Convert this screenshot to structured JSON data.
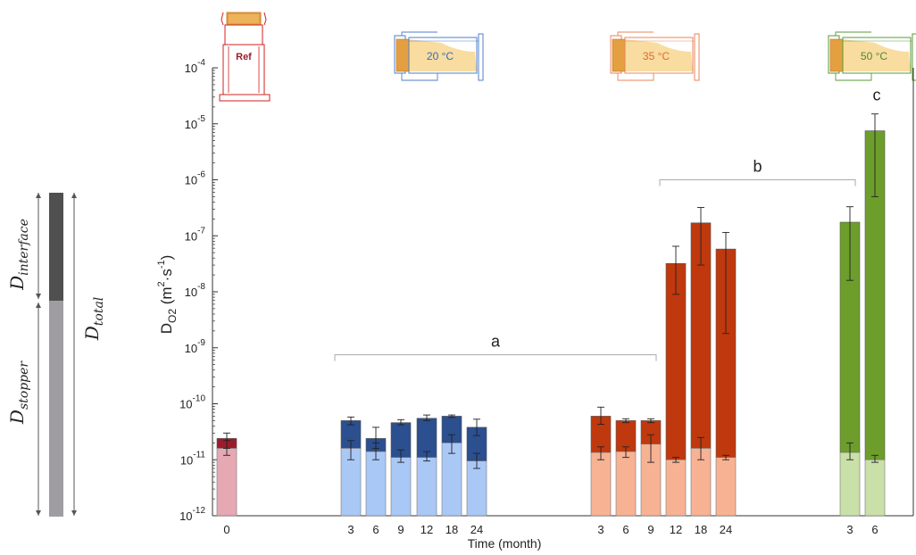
{
  "chart_data": {
    "type": "bar",
    "stacked_layers": [
      "stopper",
      "interface"
    ],
    "xlabel": "Time (month)",
    "ylabel": {
      "main": "D",
      "sub": "O2",
      "unit_open": " (m",
      "sup1": "2",
      "unit_mid": "·s",
      "sup2": "-1",
      "unit_close": ")"
    },
    "y_scale": "log",
    "ylim": [
      1e-12,
      0.0001
    ],
    "y_ticks": [
      {
        "value": 1e-12,
        "base": "10",
        "exp": "-12"
      },
      {
        "value": 1e-11,
        "base": "10",
        "exp": "-11"
      },
      {
        "value": 1e-10,
        "base": "10",
        "exp": "-10"
      },
      {
        "value": 1e-09,
        "base": "10",
        "exp": "-9"
      },
      {
        "value": 1e-08,
        "base": "10",
        "exp": "-8"
      },
      {
        "value": 1e-07,
        "base": "10",
        "exp": "-7"
      },
      {
        "value": 1e-06,
        "base": "10",
        "exp": "-6"
      },
      {
        "value": 1e-05,
        "base": "10",
        "exp": "-5"
      },
      {
        "value": 0.0001,
        "base": "10",
        "exp": "-4"
      }
    ],
    "groups": [
      {
        "name": "Ref",
        "stopper_color": "#e6a8b3",
        "interface_color": "#9a1c2c",
        "bars": [
          {
            "label": "0",
            "stopper": 1.6e-11,
            "total": 2.4e-11,
            "err_stopper": [
              1.2e-11,
              2.2e-11
            ],
            "err_total": [
              1.6e-11,
              3e-11
            ]
          }
        ]
      },
      {
        "name": "20 °C",
        "stopper_color": "#aac8f5",
        "interface_color": "#2b4f8f",
        "bars": [
          {
            "label": "3",
            "stopper": 1.6e-11,
            "total": 5e-11,
            "err_stopper": [
              1e-11,
              2.2e-11
            ],
            "err_total": [
              4.2e-11,
              5.8e-11
            ]
          },
          {
            "label": "6",
            "stopper": 1.4e-11,
            "total": 2.4e-11,
            "err_stopper": [
              1e-11,
              2e-11
            ],
            "err_total": [
              1.6e-11,
              3.8e-11
            ]
          },
          {
            "label": "9",
            "stopper": 1.1e-11,
            "total": 4.6e-11,
            "err_stopper": [
              9e-12,
              1.5e-11
            ],
            "err_total": [
              4.2e-11,
              5.2e-11
            ]
          },
          {
            "label": "12",
            "stopper": 1.1e-11,
            "total": 5.5e-11,
            "err_stopper": [
              9.5e-12,
              1.4e-11
            ],
            "err_total": [
              5e-11,
              6.3e-11
            ]
          },
          {
            "label": "18",
            "stopper": 2e-11,
            "total": 6e-11,
            "err_stopper": [
              1.3e-11,
              2.8e-11
            ],
            "err_total": [
              5.7e-11,
              6.3e-11
            ]
          },
          {
            "label": "24",
            "stopper": 9.5e-12,
            "total": 3.8e-11,
            "err_stopper": [
              7e-12,
              1.3e-11
            ],
            "err_total": [
              2.7e-11,
              5.3e-11
            ]
          }
        ]
      },
      {
        "name": "35 °C",
        "stopper_color": "#f7b294",
        "interface_color": "#c0380d",
        "bars": [
          {
            "label": "3",
            "stopper": 1.35e-11,
            "total": 6e-11,
            "err_stopper": [
              1e-11,
              1.7e-11
            ],
            "err_total": [
              4.3e-11,
              8.7e-11
            ]
          },
          {
            "label": "6",
            "stopper": 1.4e-11,
            "total": 5e-11,
            "err_stopper": [
              1.1e-11,
              1.7e-11
            ],
            "err_total": [
              4.6e-11,
              5.4e-11
            ]
          },
          {
            "label": "9",
            "stopper": 1.9e-11,
            "total": 5e-11,
            "err_stopper": [
              9e-12,
              2.8e-11
            ],
            "err_total": [
              4.6e-11,
              5.4e-11
            ]
          },
          {
            "label": "12",
            "stopper": 1e-11,
            "total": 3.2e-08,
            "err_stopper": [
              9e-12,
              1.1e-11
            ],
            "err_total": [
              9e-09,
              6.5e-08
            ]
          },
          {
            "label": "18",
            "stopper": 1.6e-11,
            "total": 1.7e-07,
            "err_stopper": [
              1e-11,
              2.5e-11
            ],
            "err_total": [
              3e-08,
              3.2e-07
            ]
          },
          {
            "label": "24",
            "stopper": 1.1e-11,
            "total": 5.8e-08,
            "err_stopper": [
              1e-11,
              1.2e-11
            ],
            "err_total": [
              1.8e-09,
              1.15e-07
            ]
          }
        ]
      },
      {
        "name": "50 °C",
        "stopper_color": "#c9e0a8",
        "interface_color": "#6d9e2c",
        "bars": [
          {
            "label": "3",
            "stopper": 1.35e-11,
            "total": 1.75e-07,
            "err_stopper": [
              1e-11,
              2e-11
            ],
            "err_total": [
              1.6e-08,
              3.3e-07
            ]
          },
          {
            "label": "6",
            "stopper": 1e-11,
            "total": 7.5e-06,
            "err_stopper": [
              9e-12,
              1.2e-11
            ],
            "err_total": [
              5e-07,
              1.5e-05
            ]
          }
        ]
      }
    ],
    "annotations": [
      {
        "text": "a",
        "from": [
          "20 °C",
          "3"
        ],
        "to": [
          "35 °C",
          "9"
        ],
        "level": 7.5e-10
      },
      {
        "text": "b",
        "from": [
          "35 °C",
          "12"
        ],
        "to": [
          "50 °C",
          "3"
        ],
        "level": 1e-06
      },
      {
        "text": "c",
        "at": [
          "50 °C",
          "6"
        ],
        "level": 2.6e-05
      }
    ],
    "legend_bar": {
      "segments": [
        {
          "name": "interface",
          "base": "D",
          "sub": "interface",
          "color": "#505050"
        },
        {
          "name": "stopper",
          "base": "D",
          "sub": "stopper",
          "color": "#a09da2"
        }
      ],
      "total_label": {
        "base": "D",
        "sub": "total"
      }
    },
    "bottle_icons": [
      {
        "label": "Ref",
        "color": "#d02020",
        "text_color": "#9a1c2c"
      },
      {
        "label": "20 °C",
        "color": "#4f7fc8",
        "text_color": "#3a6ab8"
      },
      {
        "label": "35 °C",
        "color": "#e8855a",
        "text_color": "#e06a30"
      },
      {
        "label": "50 °C",
        "color": "#5a9a3a",
        "text_color": "#4e8a2c"
      }
    ]
  }
}
